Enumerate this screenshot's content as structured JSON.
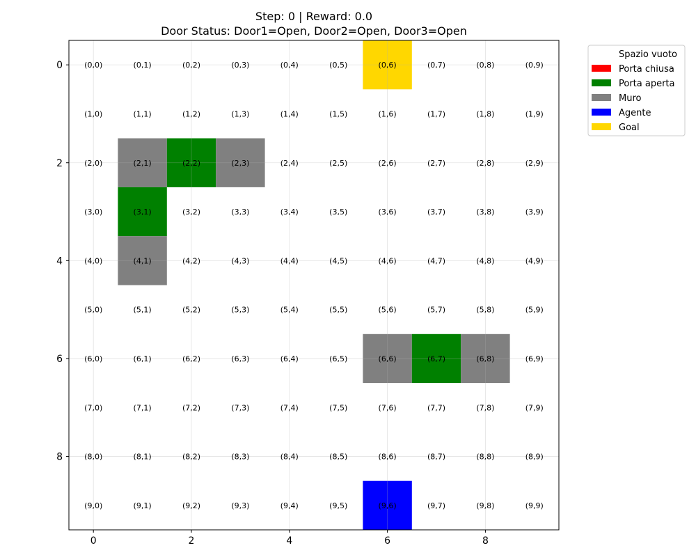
{
  "chart_data": {
    "type": "heatmap",
    "title_line1": "Step: 0 | Reward: 0.0",
    "title_line2": "Door Status: Door1=Open, Door2=Open, Door3=Open",
    "rows": 10,
    "cols": 10,
    "xlim": [
      -0.5,
      9.5
    ],
    "ylim": [
      9.5,
      -0.5
    ],
    "x_ticks": [
      0,
      2,
      4,
      6,
      8
    ],
    "y_ticks": [
      0,
      2,
      4,
      6,
      8
    ],
    "grid": true,
    "legend_placement": "outside-top-right",
    "legend": [
      {
        "key": "empty",
        "label": "Spazio vuoto",
        "color": "#ffffff"
      },
      {
        "key": "door_closed",
        "label": "Porta chiusa",
        "color": "#ff0000"
      },
      {
        "key": "door_open",
        "label": "Porta aperta",
        "color": "#008000"
      },
      {
        "key": "wall",
        "label": "Muro",
        "color": "#808080"
      },
      {
        "key": "agent",
        "label": "Agente",
        "color": "#0000ff"
      },
      {
        "key": "goal",
        "label": "Goal",
        "color": "#ffd700"
      }
    ],
    "cells": [
      {
        "row": 0,
        "col": 6,
        "type": "goal"
      },
      {
        "row": 2,
        "col": 1,
        "type": "wall"
      },
      {
        "row": 2,
        "col": 2,
        "type": "door_open"
      },
      {
        "row": 2,
        "col": 3,
        "type": "wall"
      },
      {
        "row": 3,
        "col": 1,
        "type": "door_open"
      },
      {
        "row": 4,
        "col": 1,
        "type": "wall"
      },
      {
        "row": 6,
        "col": 6,
        "type": "wall"
      },
      {
        "row": 6,
        "col": 7,
        "type": "door_open"
      },
      {
        "row": 6,
        "col": 8,
        "type": "wall"
      },
      {
        "row": 9,
        "col": 6,
        "type": "agent"
      }
    ],
    "cell_labels": [
      "(0,0)",
      "(0,1)",
      "(0,2)",
      "(0,3)",
      "(0,4)",
      "(0,5)",
      "(0,6)",
      "(0,7)",
      "(0,8)",
      "(0,9)",
      "(1,0)",
      "(1,1)",
      "(1,2)",
      "(1,3)",
      "(1,4)",
      "(1,5)",
      "(1,6)",
      "(1,7)",
      "(1,8)",
      "(1,9)",
      "(2,0)",
      "(2,1)",
      "(2,2)",
      "(2,3)",
      "(2,4)",
      "(2,5)",
      "(2,6)",
      "(2,7)",
      "(2,8)",
      "(2,9)",
      "(3,0)",
      "(3,1)",
      "(3,2)",
      "(3,3)",
      "(3,4)",
      "(3,5)",
      "(3,6)",
      "(3,7)",
      "(3,8)",
      "(3,9)",
      "(4,0)",
      "(4,1)",
      "(4,2)",
      "(4,3)",
      "(4,4)",
      "(4,5)",
      "(4,6)",
      "(4,7)",
      "(4,8)",
      "(4,9)",
      "(5,0)",
      "(5,1)",
      "(5,2)",
      "(5,3)",
      "(5,4)",
      "(5,5)",
      "(5,6)",
      "(5,7)",
      "(5,8)",
      "(5,9)",
      "(6,0)",
      "(6,1)",
      "(6,2)",
      "(6,3)",
      "(6,4)",
      "(6,5)",
      "(6,6)",
      "(6,7)",
      "(6,8)",
      "(6,9)",
      "(7,0)",
      "(7,1)",
      "(7,2)",
      "(7,3)",
      "(7,4)",
      "(7,5)",
      "(7,6)",
      "(7,7)",
      "(7,8)",
      "(7,9)",
      "(8,0)",
      "(8,1)",
      "(8,2)",
      "(8,3)",
      "(8,4)",
      "(8,5)",
      "(8,6)",
      "(8,7)",
      "(8,8)",
      "(8,9)",
      "(9,0)",
      "(9,1)",
      "(9,2)",
      "(9,3)",
      "(9,4)",
      "(9,5)",
      "(9,6)",
      "(9,7)",
      "(9,8)",
      "(9,9)"
    ]
  }
}
